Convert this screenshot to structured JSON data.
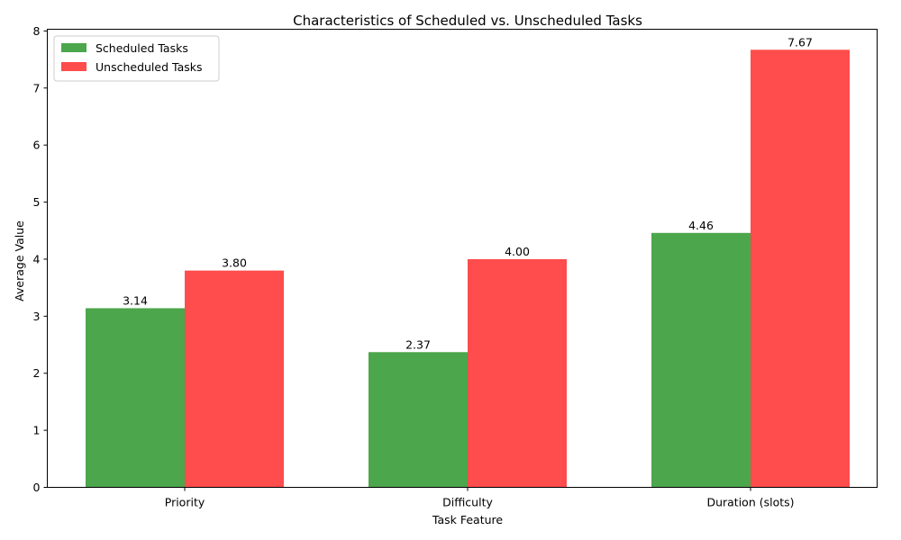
{
  "chart_data": {
    "type": "bar",
    "title": "Characteristics of Scheduled vs. Unscheduled Tasks",
    "xlabel": "Task Feature",
    "ylabel": "Average Value",
    "categories": [
      "Priority",
      "Difficulty",
      "Duration (slots)"
    ],
    "series": [
      {
        "name": "Scheduled Tasks",
        "values": [
          3.14,
          2.37,
          4.46
        ],
        "labels": [
          "3.14",
          "2.37",
          "4.46"
        ],
        "color": "#4ca64c"
      },
      {
        "name": "Unscheduled Tasks",
        "values": [
          3.8,
          4.0,
          7.67
        ],
        "labels": [
          "3.80",
          "4.00",
          "7.67"
        ],
        "color": "#ff4c4c"
      }
    ],
    "ylim": [
      0,
      8.03
    ],
    "yticks": [
      0,
      1,
      2,
      3,
      4,
      5,
      6,
      7,
      8
    ],
    "grid": false,
    "legend": "top-left"
  }
}
